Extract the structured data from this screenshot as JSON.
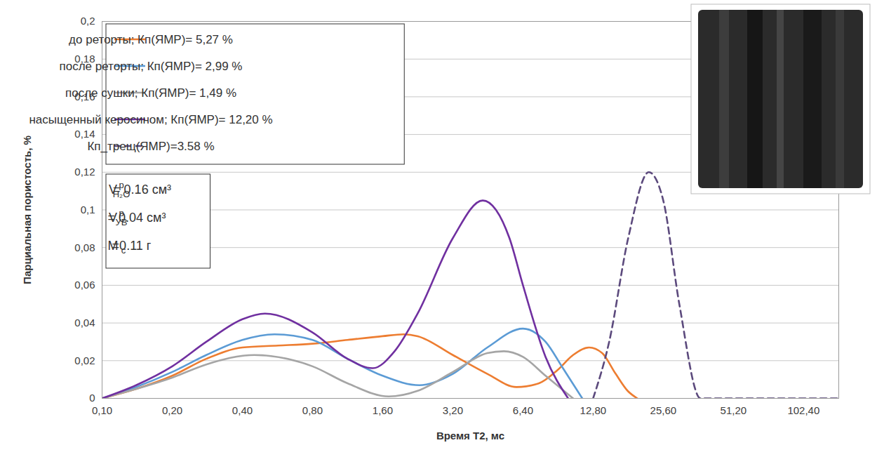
{
  "chart_data": {
    "type": "line",
    "xlabel": "Время T2, мс",
    "ylabel": "Парциальная пористость, %",
    "log": "x",
    "grid": true,
    "legend": "upper left",
    "xlim": [
      0.1,
      145
    ],
    "ylim": [
      0,
      0.2
    ],
    "xticks": [
      {
        "value": 0.1,
        "label": "0,10"
      },
      {
        "value": 0.2,
        "label": "0,20"
      },
      {
        "value": 0.4,
        "label": "0,40"
      },
      {
        "value": 0.8,
        "label": "0,80"
      },
      {
        "value": 1.6,
        "label": "1,60"
      },
      {
        "value": 3.2,
        "label": "3,20"
      },
      {
        "value": 6.4,
        "label": "6,40"
      },
      {
        "value": 12.8,
        "label": "12,80"
      },
      {
        "value": 25.6,
        "label": "25,60"
      },
      {
        "value": 51.2,
        "label": "51,20"
      },
      {
        "value": 102.4,
        "label": "102,40"
      }
    ],
    "yticks": [
      0,
      {
        "value": 0.02,
        "label": "0,02"
      },
      {
        "value": 0.04,
        "label": "0,04"
      },
      {
        "value": 0.06,
        "label": "0,06"
      },
      {
        "value": 0.08,
        "label": "0,08"
      },
      {
        "value": 0.1,
        "label": "0,1"
      },
      {
        "value": 0.12,
        "label": "0,12"
      },
      {
        "value": 0.14,
        "label": "0,14"
      },
      {
        "value": 0.16,
        "label": "0,16"
      },
      {
        "value": 0.18,
        "label": "0,18"
      },
      {
        "value": 0.2,
        "label": "0,2"
      }
    ],
    "series": [
      {
        "name": "до реторты; Кп(ЯМР)= 5,27 %",
        "color": "#ed7d31",
        "line_style": "solid",
        "x": [
          0.1,
          0.14,
          0.2,
          0.28,
          0.4,
          0.57,
          0.8,
          1.13,
          1.6,
          1.97,
          2.26,
          3.2,
          4.5,
          6.0,
          7.5,
          9,
          10.5,
          12.3,
          14,
          16,
          18,
          19.8
        ],
        "values": [
          0,
          0.005,
          0.012,
          0.021,
          0.027,
          0.028,
          0.029,
          0.031,
          0.033,
          0.034,
          0.033,
          0.023,
          0.013,
          0.006,
          0.008,
          0.015,
          0.023,
          0.027,
          0.024,
          0.013,
          0.004,
          0
        ]
      },
      {
        "name": "после реторты; Кп(ЯМР)= 2,99 %",
        "color": "#5b9bd5",
        "line_style": "solid",
        "x": [
          0.1,
          0.14,
          0.2,
          0.28,
          0.4,
          0.55,
          0.8,
          1.13,
          1.6,
          2.3,
          3.2,
          4.5,
          6.4,
          8,
          9.5,
          11.5
        ],
        "values": [
          0,
          0.006,
          0.014,
          0.023,
          0.031,
          0.034,
          0.031,
          0.021,
          0.012,
          0.007,
          0.013,
          0.027,
          0.037,
          0.03,
          0.016,
          0
        ]
      },
      {
        "name": "после сушки; Кп(ЯМР)= 1,49 %",
        "color": "#a5a5a5",
        "line_style": "solid",
        "x": [
          0.1,
          0.14,
          0.2,
          0.28,
          0.45,
          0.8,
          1.13,
          1.7,
          2.26,
          3.2,
          4.5,
          5.3,
          6.4,
          8,
          10.5
        ],
        "values": [
          0,
          0.005,
          0.011,
          0.018,
          0.023,
          0.017,
          0.008,
          0.001,
          0.004,
          0.014,
          0.024,
          0.025,
          0.022,
          0.012,
          0
        ]
      },
      {
        "name": "насыщенный керосином; Кп(ЯМР)= 12,20 %",
        "color": "#7030a0",
        "line_style": "solid",
        "x": [
          0.1,
          0.14,
          0.2,
          0.28,
          0.4,
          0.5,
          0.8,
          1.13,
          1.45,
          1.8,
          2.26,
          3.2,
          4.3,
          5.6,
          6.4,
          8,
          10
        ],
        "values": [
          0,
          0.007,
          0.017,
          0.03,
          0.042,
          0.045,
          0.035,
          0.021,
          0.016,
          0.025,
          0.045,
          0.085,
          0.105,
          0.085,
          0.06,
          0.022,
          0
        ]
      },
      {
        "name": "Кп_трещ(ЯМР)=3.58 %",
        "color": "#5c4a7d",
        "line_style": "dashed",
        "x": [
          12.8,
          15,
          18.1,
          22.2,
          25.6,
          30,
          37,
          51.2,
          102.4,
          145
        ],
        "values": [
          0,
          0.03,
          0.085,
          0.12,
          0.105,
          0.05,
          0,
          0,
          0,
          0
        ]
      }
    ],
    "annotations": [
      {
        "symbol": "V",
        "sup": "p",
        "sub": "H₂O",
        "text": "= 0.16 см³"
      },
      {
        "symbol": "V",
        "sup": "p",
        "sub": "УВ",
        "text": "= 0.04 см³"
      },
      {
        "symbol": "M",
        "sub": "c",
        "text": "=0.11 г"
      }
    ]
  }
}
